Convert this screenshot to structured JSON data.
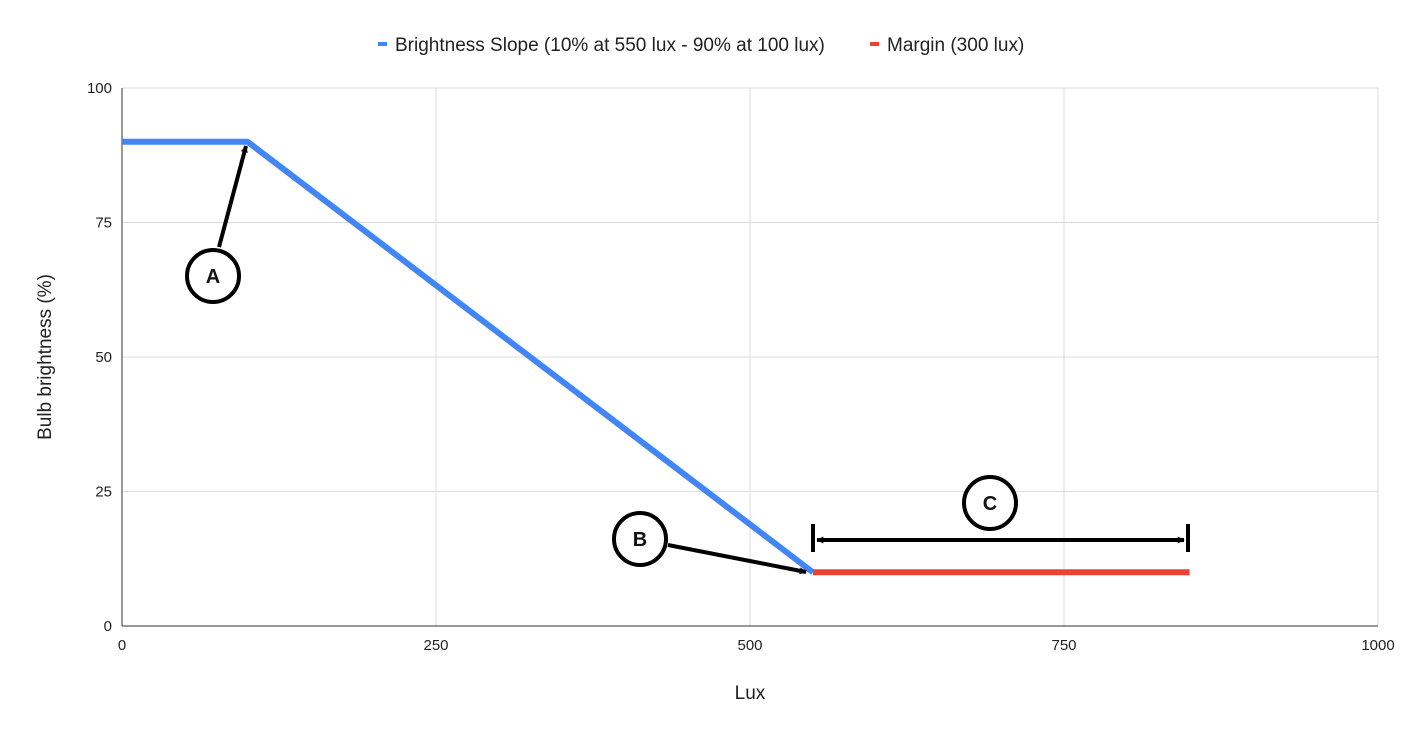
{
  "chart_data": {
    "type": "line",
    "xlabel": "Lux",
    "ylabel": "Bulb brightness (%)",
    "xlim": [
      0,
      1000
    ],
    "ylim": [
      0,
      100
    ],
    "xticks": [
      0,
      250,
      500,
      750,
      1000
    ],
    "yticks": [
      0,
      25,
      50,
      75,
      100
    ],
    "grid": true,
    "legend_position": "top",
    "series": [
      {
        "name": "Brightness Slope (10% at 550 lux - 90% at 100 lux)",
        "color": "#4285f4",
        "points": [
          [
            0,
            90
          ],
          [
            100,
            90
          ],
          [
            550,
            10
          ]
        ]
      },
      {
        "name": "Margin (300 lux)",
        "color": "#ea4335",
        "points": [
          [
            550,
            10
          ],
          [
            850,
            10
          ]
        ]
      }
    ],
    "annotations": [
      {
        "label": "A",
        "target": [
          100,
          90
        ]
      },
      {
        "label": "B",
        "target": [
          550,
          10
        ]
      },
      {
        "label": "C",
        "span": [
          550,
          850
        ],
        "y": 16
      }
    ]
  }
}
